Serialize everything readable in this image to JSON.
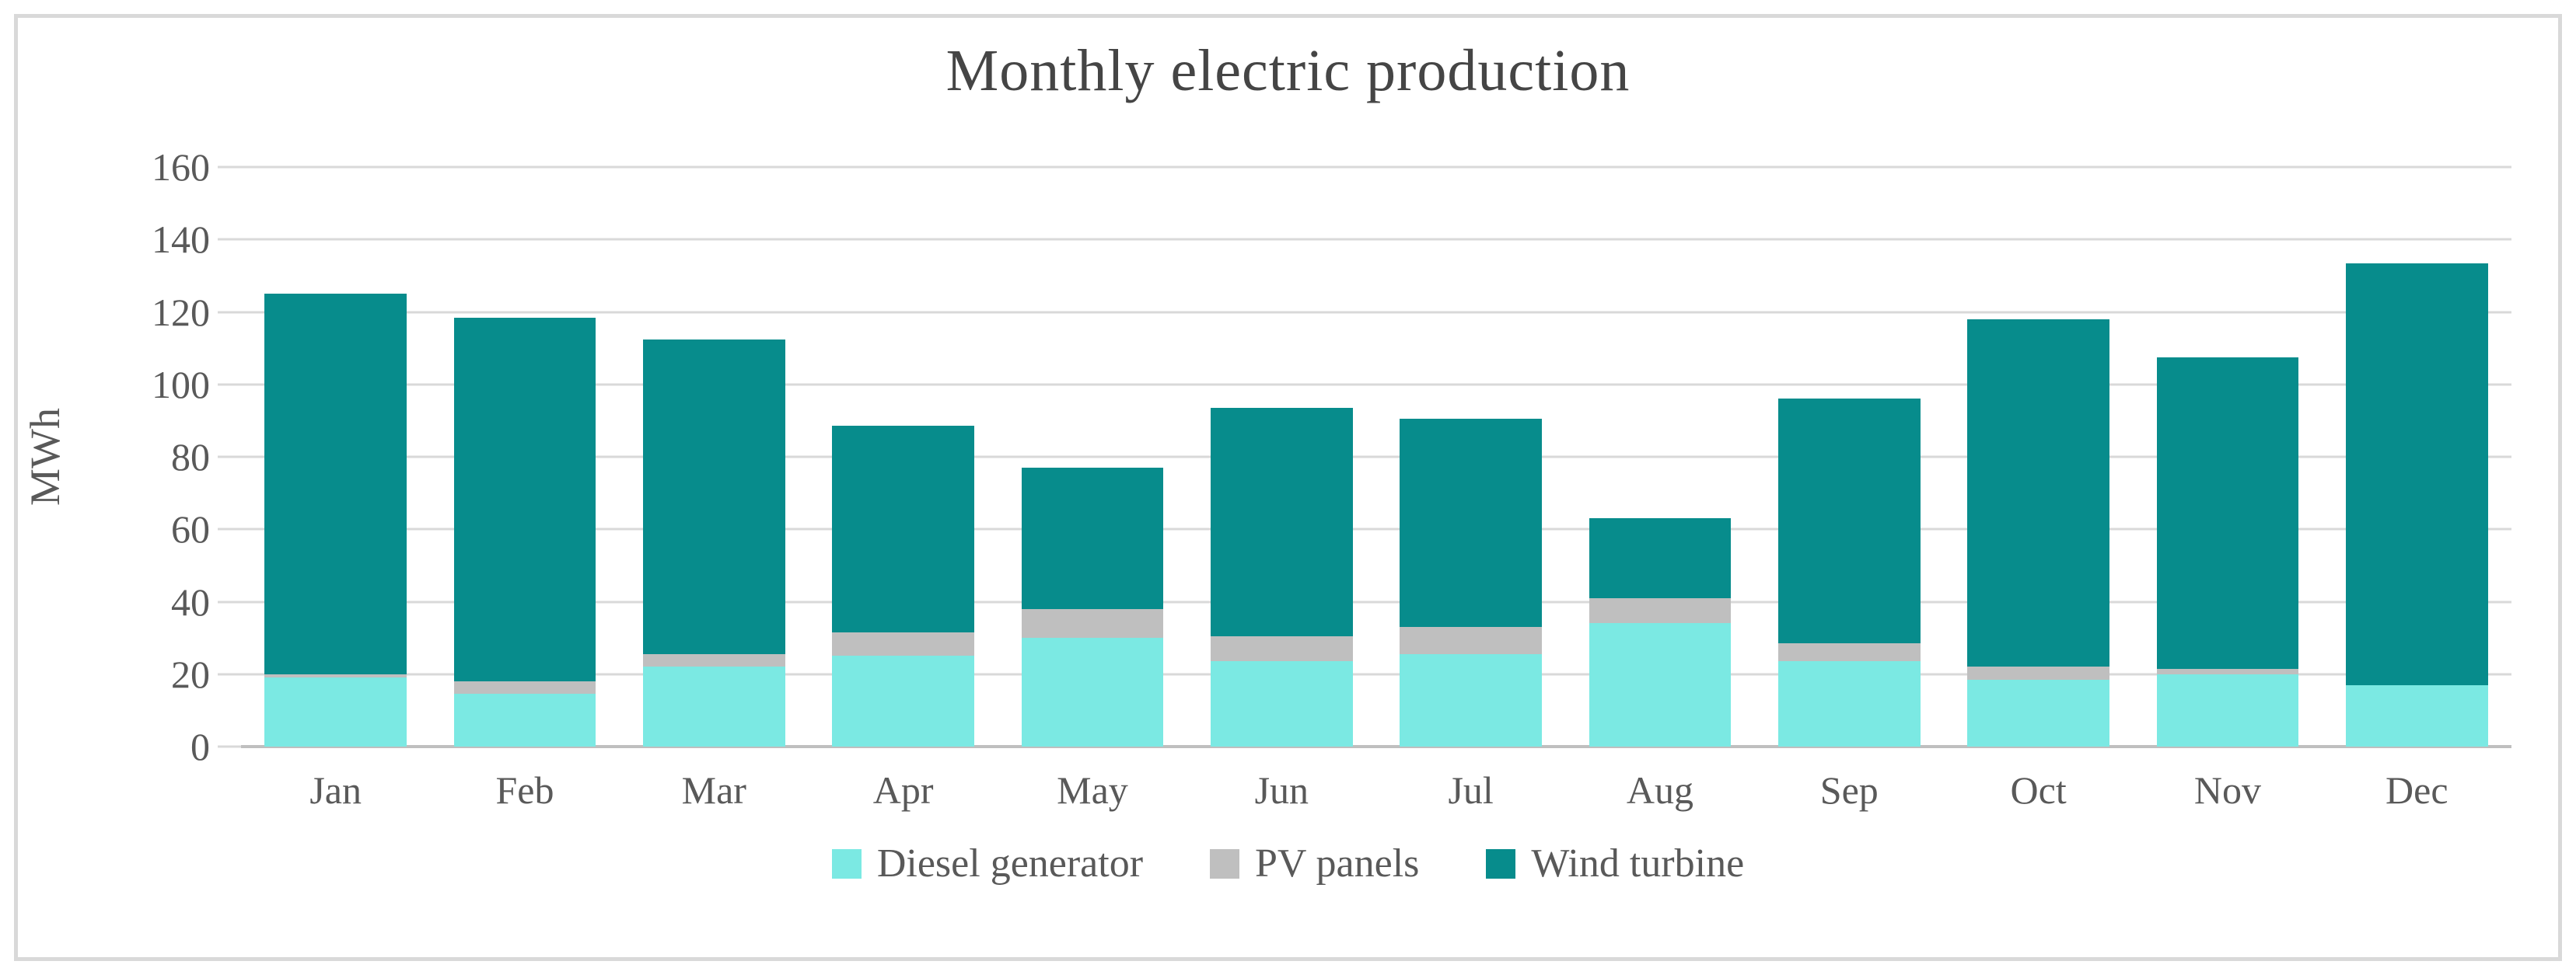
{
  "chart_data": {
    "type": "bar",
    "stacked": true,
    "title": "Monthly electric production",
    "ylabel": "MWh",
    "xlabel": "",
    "categories": [
      "Jan",
      "Feb",
      "Mar",
      "Apr",
      "May",
      "Jun",
      "Jul",
      "Aug",
      "Sep",
      "Oct",
      "Nov",
      "Dec"
    ],
    "series": [
      {
        "name": "Diesel generator",
        "color": "#7be9e3",
        "values": [
          19,
          14.5,
          22,
          25,
          30,
          23.5,
          25.5,
          34,
          23.5,
          18.5,
          20,
          17
        ]
      },
      {
        "name": "PV panels",
        "color": "#bfbfbf",
        "values": [
          1,
          3.5,
          3.5,
          6.5,
          8,
          7,
          7.5,
          7,
          5,
          3.5,
          1.5,
          0
        ]
      },
      {
        "name": "Wind turbine",
        "color": "#078c8c",
        "values": [
          105,
          100.5,
          87,
          57,
          39,
          63,
          57.5,
          22,
          67.5,
          96,
          86,
          116.5
        ]
      }
    ],
    "totals": [
      125,
      118.5,
      112.5,
      88.5,
      77,
      93.5,
      90.5,
      63,
      96,
      118,
      107.5,
      133.5
    ],
    "ylim": [
      0,
      160
    ],
    "yticks": [
      0,
      20,
      40,
      60,
      80,
      100,
      120,
      140,
      160
    ],
    "grid": "horizontal",
    "legend_position": "bottom",
    "colors": {
      "gridline": "#d9d9d9",
      "axis_line": "#bfbfbf",
      "axis_text": "#595959",
      "title_text": "#454545",
      "frame_border": "#d9d9d9",
      "background": "#ffffff"
    }
  }
}
